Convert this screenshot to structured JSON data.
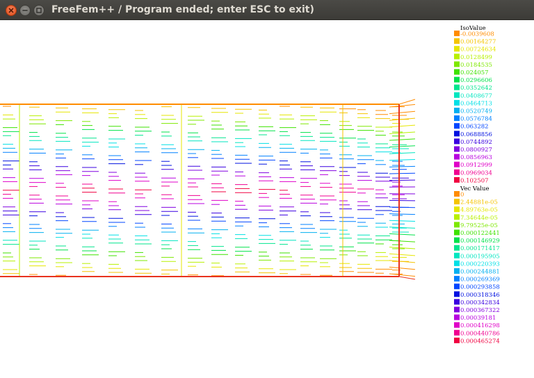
{
  "window": {
    "title": "FreeFem++ / Program ended; enter ESC to exit)"
  },
  "colors": {
    "titlebar": "#3c3b37",
    "close": "#e9541f",
    "frame": "#e8321e",
    "legend_text": "#000000"
  },
  "iso_legend": {
    "title": "IsoValue",
    "items": [
      {
        "label": "-0.0039608",
        "color": "#ff8c00"
      },
      {
        "label": "0.00164277",
        "color": "#f5c400"
      },
      {
        "label": "0.00724634",
        "color": "#e6e600"
      },
      {
        "label": "0.0128499",
        "color": "#b8f000"
      },
      {
        "label": "0.0184535",
        "color": "#7ee800"
      },
      {
        "label": "0.024057",
        "color": "#3ee200"
      },
      {
        "label": "0.0296606",
        "color": "#00e24a"
      },
      {
        "label": "0.0352642",
        "color": "#00e68e"
      },
      {
        "label": "0.0408677",
        "color": "#00e6c0"
      },
      {
        "label": "0.0464713",
        "color": "#00e0e6"
      },
      {
        "label": "0.0520749",
        "color": "#00b0f0"
      },
      {
        "label": "0.0576784",
        "color": "#0080ff"
      },
      {
        "label": "0.063282",
        "color": "#0046ff"
      },
      {
        "label": "0.0688856",
        "color": "#0010e0"
      },
      {
        "label": "0.0744892",
        "color": "#3a00e0"
      },
      {
        "label": "0.0800927",
        "color": "#8000e0"
      },
      {
        "label": "0.0856963",
        "color": "#b800e0"
      },
      {
        "label": "0.0912999",
        "color": "#e000c8"
      },
      {
        "label": "0.0969034",
        "color": "#f00090"
      },
      {
        "label": "0.102507",
        "color": "#f00040"
      }
    ]
  },
  "vec_legend": {
    "title": "Vec Value",
    "items": [
      {
        "label": "0",
        "color": "#ff8c00"
      },
      {
        "label": "2.44881e-05",
        "color": "#f5c400"
      },
      {
        "label": "4.89763e-05",
        "color": "#e6e600"
      },
      {
        "label": "7.34644e-05",
        "color": "#b8f000"
      },
      {
        "label": "9.79525e-05",
        "color": "#7ee800"
      },
      {
        "label": "0.000122441",
        "color": "#3ee200"
      },
      {
        "label": "0.000146929",
        "color": "#00e24a"
      },
      {
        "label": "0.000171417",
        "color": "#00e68e"
      },
      {
        "label": "0.000195905",
        "color": "#00e6c0"
      },
      {
        "label": "0.000220393",
        "color": "#00e0e6"
      },
      {
        "label": "0.000244881",
        "color": "#00b0f0"
      },
      {
        "label": "0.000269369",
        "color": "#0080ff"
      },
      {
        "label": "0.000293858",
        "color": "#0046ff"
      },
      {
        "label": "0.000318346",
        "color": "#0010e0"
      },
      {
        "label": "0.000342834",
        "color": "#3a00e0"
      },
      {
        "label": "0.000367322",
        "color": "#8000e0"
      },
      {
        "label": "0.00039181",
        "color": "#b800e0"
      },
      {
        "label": "0.000416298",
        "color": "#e000c8"
      },
      {
        "label": "0.000440786",
        "color": "#f00090"
      },
      {
        "label": "0.000465274",
        "color": "#f00040"
      }
    ]
  }
}
